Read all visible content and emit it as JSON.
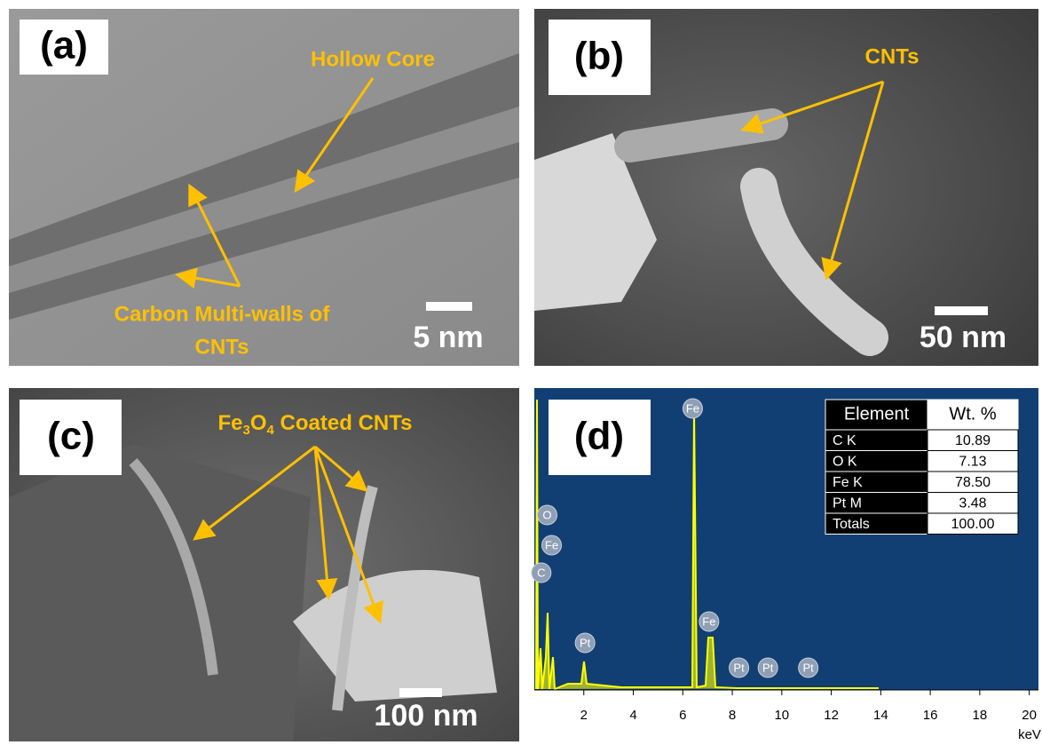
{
  "panels": [
    {
      "label": "(a)",
      "scale_bar": "5 nm",
      "annotations": [
        {
          "lines": [
            "Hollow Core"
          ]
        },
        {
          "lines": [
            "Carbon Multi-walls of",
            "CNTs"
          ]
        }
      ]
    },
    {
      "label": "(b)",
      "scale_bar": "50 nm",
      "annotations": [
        {
          "lines": [
            "CNTs"
          ]
        }
      ]
    },
    {
      "label": "(c)",
      "scale_bar": "100 nm",
      "annotations": [
        {
          "parts": [
            "Fe",
            "3",
            "O",
            "4",
            " Coated CNTs"
          ]
        }
      ]
    },
    {
      "label": "(d)",
      "spectrum": {
        "x_unit": "keV",
        "xlim": [
          0,
          20.3
        ],
        "xticks": [
          2,
          4,
          6,
          8,
          10,
          12,
          14,
          16,
          18,
          20
        ],
        "peaks": [
          {
            "label": "O",
            "energy": 0.52
          },
          {
            "label": "Fe",
            "energy": 0.7
          },
          {
            "label": "C",
            "energy": 0.28
          },
          {
            "label": "Pt",
            "energy": 2.05
          },
          {
            "label": "Fe",
            "energy": 6.4
          },
          {
            "label": "Fe",
            "energy": 7.06
          },
          {
            "label": "Pt",
            "energy": 8.27
          },
          {
            "label": "Pt",
            "energy": 9.44
          },
          {
            "label": "Pt",
            "energy": 11.07
          }
        ]
      },
      "table": {
        "header": [
          "Element",
          "Wt. %"
        ],
        "rows": [
          [
            "C K",
            "10.89"
          ],
          [
            "O K",
            "7.13"
          ],
          [
            "Fe K",
            "78.50"
          ],
          [
            "Pt M",
            "3.48"
          ],
          [
            "Totals",
            "100.00"
          ]
        ]
      }
    }
  ]
}
